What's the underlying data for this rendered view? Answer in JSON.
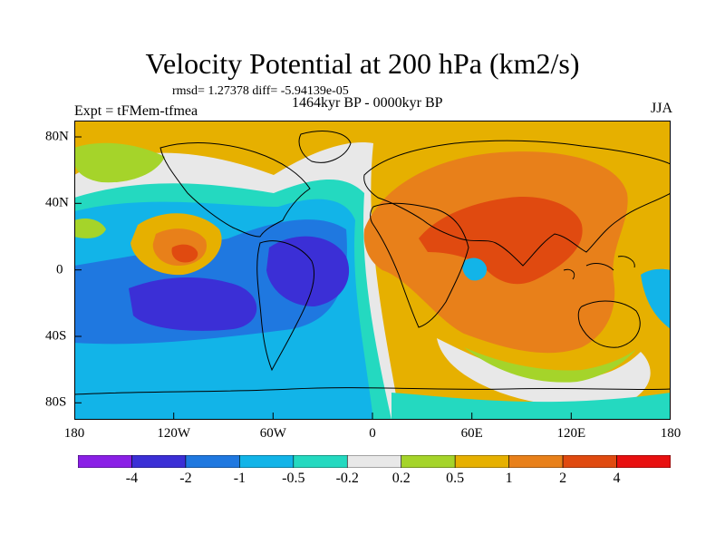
{
  "title": "Velocity Potential at 200 hPa (km2/s)",
  "stats_line": "rmsd= 1.27378 diff= -5.94139e-05",
  "period_line": "1464kyr BP - 0000kyr BP",
  "experiment_line": "Expt = tFMem-tfmea",
  "season": "JJA",
  "x_ticks": [
    "180",
    "120W",
    "60W",
    "0",
    "60E",
    "120E",
    "180"
  ],
  "y_ticks": [
    "80N",
    "40N",
    "0",
    "40S",
    "80S"
  ],
  "colorbar": {
    "labels": [
      "-4",
      "-2",
      "-1",
      "-0.5",
      "-0.2",
      "0.2",
      "0.5",
      "1",
      "2",
      "4"
    ],
    "colors": [
      "#8a1fe6",
      "#3b2fd6",
      "#1f78e0",
      "#12b4e8",
      "#24d9c0",
      "#e8e8e8",
      "#a5d42a",
      "#e6b000",
      "#e8801a",
      "#e04a10",
      "#e81010"
    ]
  },
  "field_colors": {
    "ocean_base": "#e6b000",
    "land_outline": "#000000"
  }
}
